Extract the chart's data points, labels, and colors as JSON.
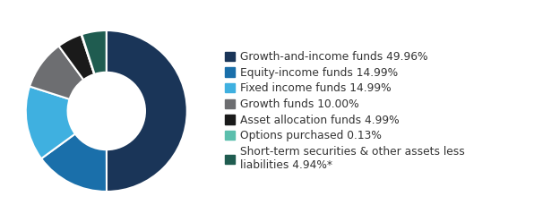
{
  "slices": [
    {
      "label": "Growth-and-income funds 49.96%",
      "value": 49.96,
      "color": "#1a3558"
    },
    {
      "label": "Equity-income funds 14.99%",
      "value": 14.99,
      "color": "#1a6faa"
    },
    {
      "label": "Fixed income funds 14.99%",
      "value": 14.99,
      "color": "#3fb0e0"
    },
    {
      "label": "Growth funds 10.00%",
      "value": 10.0,
      "color": "#6d6e71"
    },
    {
      "label": "Asset allocation funds 4.99%",
      "value": 4.99,
      "color": "#1a1a1a"
    },
    {
      "label": "Options purchased 0.13%",
      "value": 0.13,
      "color": "#5bbfad"
    },
    {
      "label": "Short-term securities & other assets less\nliabilities 4.94%*",
      "value": 4.94,
      "color": "#1f5c50"
    }
  ],
  "start_angle": 90,
  "background_color": "#ffffff",
  "font_size": 8.8,
  "text_color": "#333333",
  "donut_width": 0.52,
  "edge_color": "white",
  "edge_linewidth": 1.5
}
